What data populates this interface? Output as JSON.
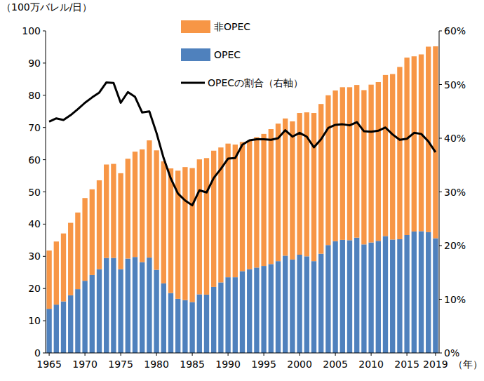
{
  "chart_data": {
    "type": "bar",
    "stacked": true,
    "y_label": "（100万バレル/日）",
    "x_label": "（年）",
    "categories": [
      "1965",
      null,
      null,
      null,
      null,
      "1970",
      null,
      null,
      null,
      null,
      "1975",
      null,
      null,
      null,
      null,
      "1980",
      null,
      null,
      null,
      null,
      "1985",
      null,
      null,
      null,
      null,
      "1990",
      null,
      null,
      null,
      null,
      "1995",
      null,
      null,
      null,
      null,
      "2000",
      null,
      null,
      null,
      null,
      "2005",
      null,
      null,
      null,
      null,
      "2010",
      null,
      null,
      null,
      null,
      "2015",
      null,
      null,
      null,
      "2019"
    ],
    "series": [
      {
        "name": "非OPEC",
        "type": "bar",
        "color": "#f79646",
        "values": [
          18.1,
          19.6,
          21.1,
          22.5,
          23.8,
          25.7,
          26.6,
          27.6,
          29.0,
          29.2,
          29.8,
          31.0,
          32.7,
          35.0,
          36.4,
          37.1,
          37.9,
          38.7,
          39.8,
          41.3,
          41.6,
          41.9,
          42.4,
          42.3,
          41.9,
          41.5,
          41.2,
          40.1,
          40.0,
          40.5,
          41.0,
          41.9,
          42.7,
          42.6,
          42.9,
          44.0,
          44.7,
          46.0,
          46.5,
          46.5,
          46.8,
          47.4,
          47.5,
          47.4,
          47.9,
          49.0,
          49.3,
          50.0,
          51.4,
          53.5,
          55.1,
          54.4,
          54.9,
          57.6,
          59.6
        ]
      },
      {
        "name": "OPEC",
        "type": "bar",
        "color": "#4f81bd",
        "values": [
          13.7,
          15.0,
          16.0,
          17.9,
          19.8,
          22.4,
          24.2,
          26.0,
          29.5,
          29.5,
          26.0,
          29.3,
          29.8,
          28.2,
          29.6,
          25.8,
          21.6,
          18.6,
          16.8,
          16.4,
          15.8,
          18.2,
          18.1,
          20.5,
          21.9,
          23.5,
          23.5,
          25.4,
          26.0,
          26.5,
          27.0,
          27.6,
          28.5,
          30.2,
          29.0,
          30.5,
          30.0,
          28.5,
          30.8,
          33.5,
          34.7,
          35.1,
          35.0,
          35.8,
          33.7,
          34.3,
          34.8,
          36.3,
          35.2,
          35.3,
          36.6,
          37.7,
          37.8,
          37.5,
          35.6
        ]
      },
      {
        "name": "OPECの割合（右軸）",
        "type": "line",
        "axis": "y2",
        "color": "#000000",
        "values": [
          43.1,
          43.7,
          43.4,
          44.3,
          45.4,
          46.6,
          47.6,
          48.5,
          50.4,
          50.3,
          46.6,
          48.6,
          47.7,
          44.8,
          45.0,
          41.0,
          36.3,
          32.5,
          29.7,
          28.4,
          27.5,
          30.3,
          29.9,
          32.6,
          34.3,
          36.2,
          36.3,
          38.8,
          39.6,
          39.8,
          39.8,
          39.7,
          40.0,
          41.5,
          40.3,
          41.0,
          40.3,
          38.3,
          39.8,
          41.9,
          42.5,
          42.6,
          42.4,
          43.0,
          41.3,
          41.2,
          41.4,
          42.0,
          40.7,
          39.7,
          39.9,
          41.0,
          40.8,
          39.4,
          37.4
        ]
      }
    ],
    "ylim": [
      0,
      100
    ],
    "yticks": [
      0,
      10,
      20,
      30,
      40,
      50,
      60,
      70,
      80,
      90,
      100
    ],
    "y2lim": [
      0,
      60
    ],
    "y2ticks": [
      {
        "value": 0,
        "label": "0%"
      },
      {
        "value": 10,
        "label": "10%"
      },
      {
        "value": 20,
        "label": "20%"
      },
      {
        "value": 30,
        "label": "30%"
      },
      {
        "value": 40,
        "label": "40%"
      },
      {
        "value": 50,
        "label": "50%"
      },
      {
        "value": 60,
        "label": "60%"
      }
    ],
    "grid": false,
    "legend": "top"
  }
}
